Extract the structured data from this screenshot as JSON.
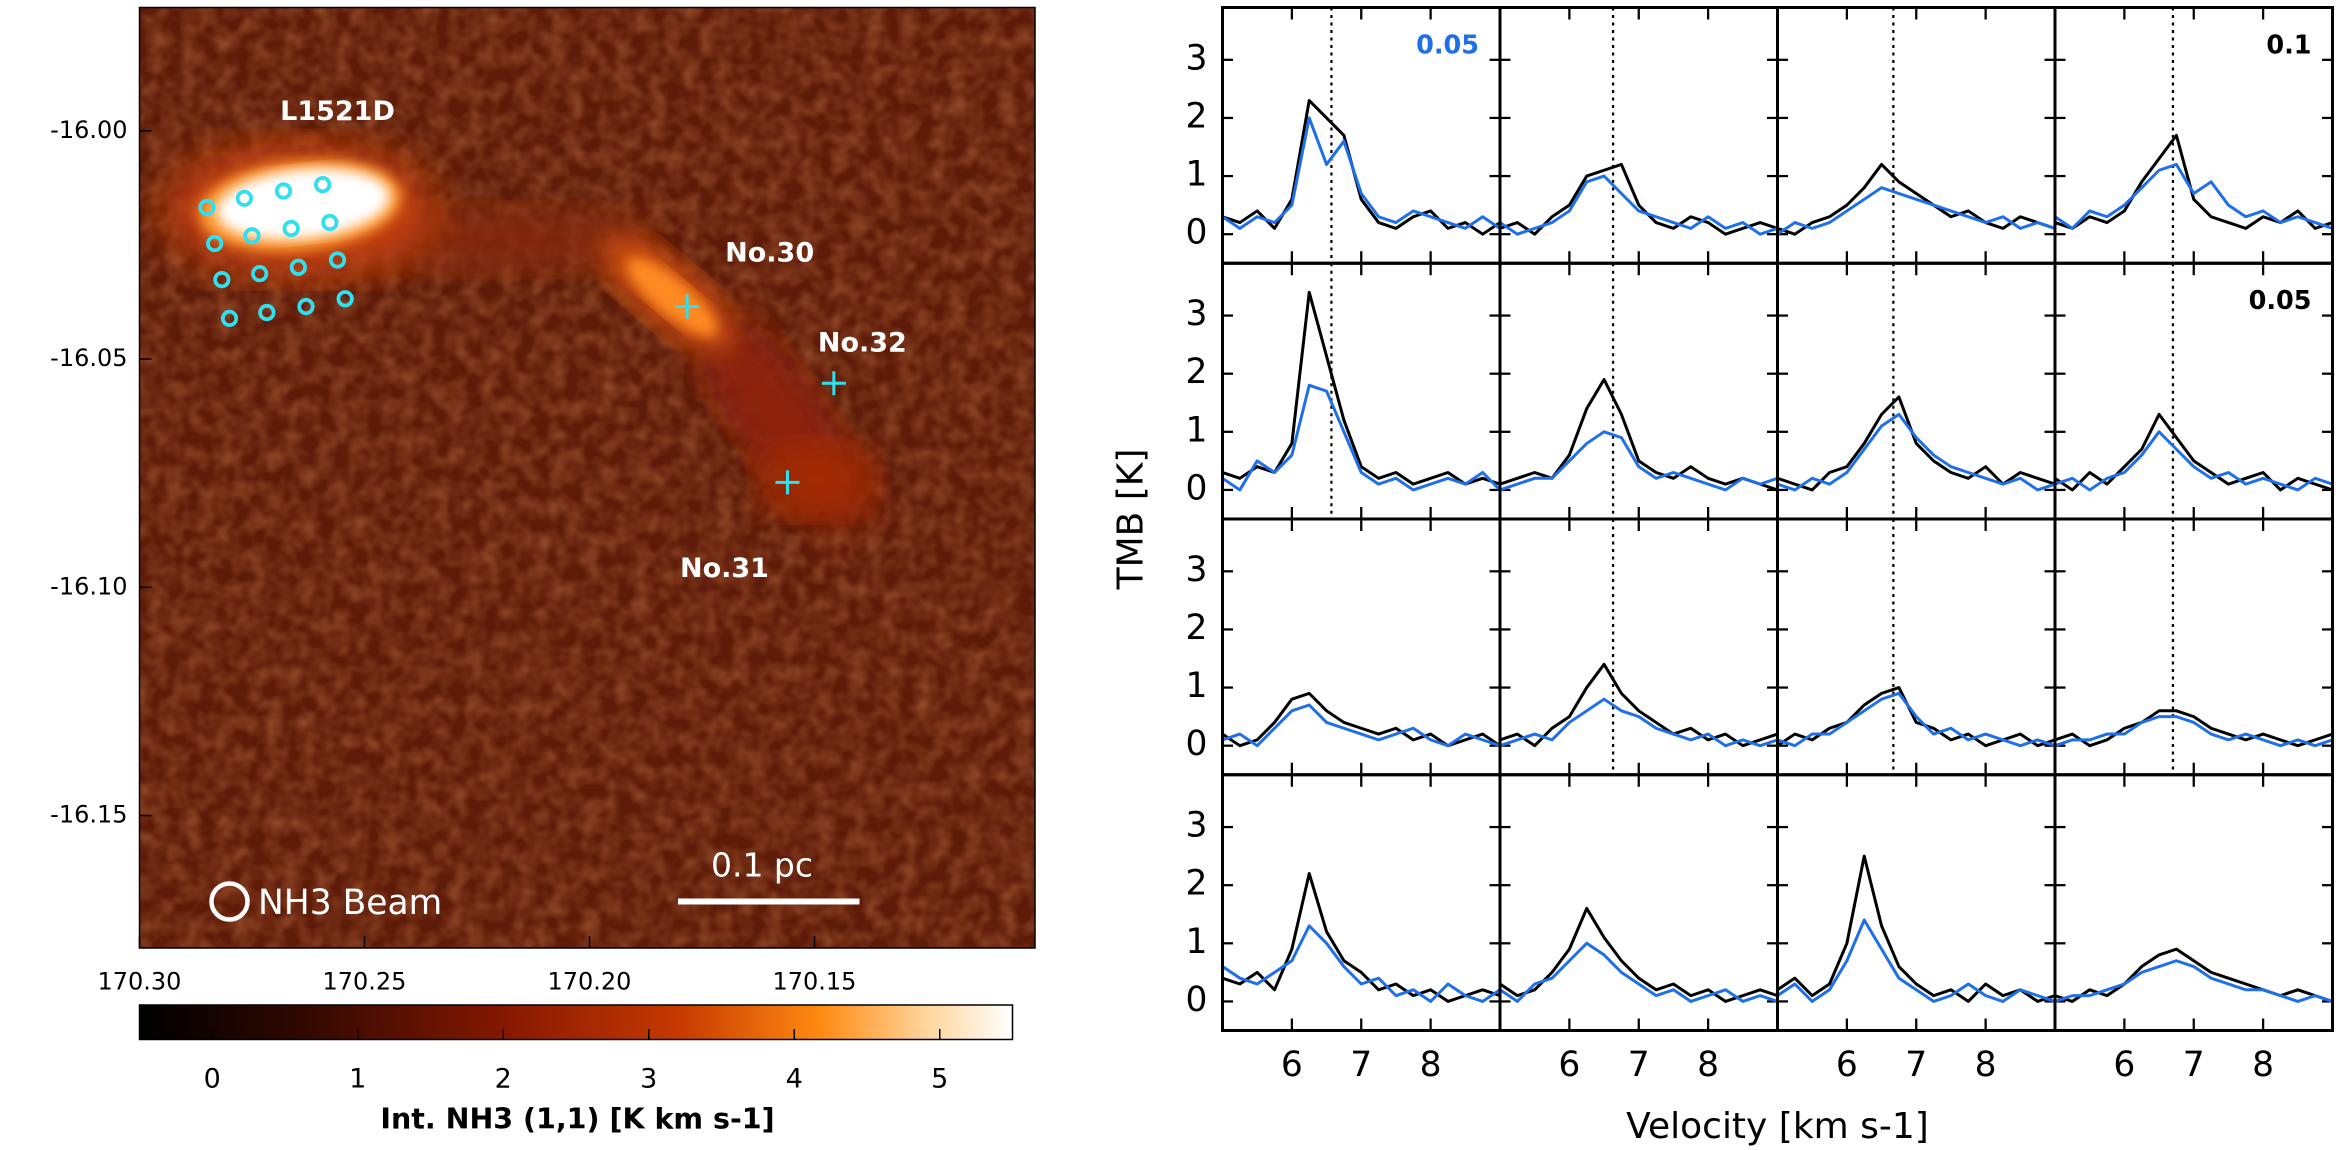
{
  "chart_data": [
    {
      "type": "image",
      "region_label": "L1521D",
      "xlim": [
        170.3,
        170.101
      ],
      "xticks": [
        {
          "value": 170.3,
          "label": "170.30"
        },
        {
          "value": 170.25,
          "label": "170.25"
        },
        {
          "value": 170.2,
          "label": "170.20"
        },
        {
          "value": 170.15,
          "label": "170.15"
        }
      ],
      "ylim": [
        -16.179,
        -15.973
      ],
      "yticks": [
        {
          "value": -16.0,
          "label": "-16.00"
        },
        {
          "value": -16.05,
          "label": "-16.05"
        },
        {
          "value": -16.1,
          "label": "-16.10"
        },
        {
          "value": -16.15,
          "label": "-16.15"
        }
      ],
      "sources": [
        {
          "name": "No.30",
          "x": 170.1783,
          "y": -16.0385
        },
        {
          "name": "No.32",
          "x": 170.1457,
          "y": -16.0553
        },
        {
          "name": "No.31",
          "x": 170.156,
          "y": -16.077
        }
      ],
      "positions": [
        {
          "x": 170.285,
          "y": -16.0168
        },
        {
          "x": 170.2767,
          "y": -16.0148
        },
        {
          "x": 170.268,
          "y": -16.0132
        },
        {
          "x": 170.2593,
          "y": -16.0118
        },
        {
          "x": 170.2833,
          "y": -16.0247
        },
        {
          "x": 170.275,
          "y": -16.023
        },
        {
          "x": 170.2663,
          "y": -16.0214
        },
        {
          "x": 170.2577,
          "y": -16.0201
        },
        {
          "x": 170.2817,
          "y": -16.0326
        },
        {
          "x": 170.2733,
          "y": -16.0313
        },
        {
          "x": 170.2647,
          "y": -16.0299
        },
        {
          "x": 170.256,
          "y": -16.0283
        },
        {
          "x": 170.28,
          "y": -16.0411
        },
        {
          "x": 170.2717,
          "y": -16.0398
        },
        {
          "x": 170.263,
          "y": -16.0385
        },
        {
          "x": 170.2543,
          "y": -16.0368
        }
      ],
      "marker_color": "#2fe0f0",
      "beam_label": "NH3 Beam",
      "scalebar_label": "0.1 pc",
      "colorbar": {
        "label": "Int. NH3 (1,1) [K km s-1]",
        "lim": [
          -0.5,
          5.5
        ],
        "ticks": [
          0,
          1,
          2,
          3,
          4,
          5
        ]
      }
    },
    {
      "type": "line",
      "xlabel": "Velocity [km s-1]",
      "ylabel": "TMB [K]",
      "xlim": [
        5.0,
        9.0
      ],
      "xticks": [
        6,
        7,
        8
      ],
      "ylim": [
        -0.5,
        3.9
      ],
      "yticks": [
        0,
        1,
        2,
        3
      ],
      "colors": [
        "#000000",
        "#1f6fe8"
      ],
      "x": [
        5.0,
        5.25,
        5.5,
        5.75,
        6.0,
        6.25,
        6.5,
        6.75,
        7.0,
        7.25,
        7.5,
        7.75,
        8.0,
        8.25,
        8.5,
        8.75,
        9.0
      ],
      "panels": [
        {
          "vline": 6.57,
          "note": "0.05",
          "note_color": "#1f6fe8",
          "series": [
            [
              0.3,
              0.2,
              0.4,
              0.1,
              0.6,
              2.3,
              2.0,
              1.7,
              0.6,
              0.2,
              0.1,
              0.3,
              0.4,
              0.1,
              0.2,
              0.0,
              0.2
            ],
            [
              0.3,
              0.1,
              0.3,
              0.2,
              0.5,
              2.0,
              1.2,
              1.6,
              0.7,
              0.3,
              0.2,
              0.4,
              0.3,
              0.2,
              0.1,
              0.3,
              0.1
            ]
          ]
        },
        {
          "vline": 6.63,
          "series": [
            [
              0.1,
              0.2,
              0.0,
              0.3,
              0.5,
              1.0,
              1.1,
              1.2,
              0.5,
              0.2,
              0.1,
              0.3,
              0.2,
              0.0,
              0.1,
              0.2,
              0.1
            ],
            [
              0.2,
              0.0,
              0.1,
              0.2,
              0.4,
              0.9,
              1.0,
              0.7,
              0.4,
              0.3,
              0.2,
              0.1,
              0.3,
              0.1,
              0.2,
              0.0,
              0.1
            ]
          ]
        },
        {
          "vline": 6.67,
          "series": [
            [
              0.1,
              0.0,
              0.2,
              0.3,
              0.5,
              0.8,
              1.2,
              0.9,
              0.7,
              0.5,
              0.3,
              0.4,
              0.2,
              0.1,
              0.3,
              0.2,
              0.1
            ],
            [
              0.0,
              0.2,
              0.1,
              0.2,
              0.4,
              0.6,
              0.8,
              0.7,
              0.6,
              0.5,
              0.4,
              0.3,
              0.2,
              0.3,
              0.1,
              0.2,
              0.1
            ]
          ]
        },
        {
          "vline": 6.7,
          "note": "0.1",
          "note_color": "#000000",
          "series": [
            [
              0.2,
              0.1,
              0.3,
              0.2,
              0.4,
              0.9,
              1.3,
              1.7,
              0.6,
              0.3,
              0.2,
              0.1,
              0.3,
              0.2,
              0.4,
              0.1,
              0.2
            ],
            [
              0.3,
              0.1,
              0.4,
              0.3,
              0.5,
              0.8,
              1.1,
              1.2,
              0.7,
              0.9,
              0.5,
              0.3,
              0.4,
              0.2,
              0.3,
              0.2,
              0.1
            ]
          ]
        },
        {
          "vline": 6.57,
          "series": [
            [
              0.3,
              0.2,
              0.4,
              0.3,
              0.8,
              3.4,
              2.3,
              1.2,
              0.4,
              0.2,
              0.3,
              0.1,
              0.2,
              0.3,
              0.1,
              0.2,
              0.1
            ],
            [
              0.2,
              0.0,
              0.5,
              0.3,
              0.6,
              1.8,
              1.7,
              1.0,
              0.3,
              0.1,
              0.2,
              0.0,
              0.1,
              0.2,
              0.1,
              0.3,
              0.0
            ]
          ]
        },
        {
          "vline": 6.63,
          "series": [
            [
              0.1,
              0.2,
              0.3,
              0.2,
              0.6,
              1.4,
              1.9,
              1.3,
              0.5,
              0.3,
              0.2,
              0.4,
              0.2,
              0.1,
              0.2,
              0.1,
              0.0
            ],
            [
              0.0,
              0.1,
              0.2,
              0.2,
              0.5,
              0.8,
              1.0,
              0.9,
              0.4,
              0.2,
              0.3,
              0.2,
              0.1,
              0.0,
              0.2,
              0.1,
              0.2
            ]
          ]
        },
        {
          "vline": 6.67,
          "series": [
            [
              0.2,
              0.1,
              0.0,
              0.3,
              0.4,
              0.8,
              1.3,
              1.6,
              0.8,
              0.5,
              0.3,
              0.2,
              0.4,
              0.1,
              0.3,
              0.2,
              0.1
            ],
            [
              0.1,
              0.0,
              0.2,
              0.1,
              0.3,
              0.7,
              1.1,
              1.3,
              0.9,
              0.6,
              0.4,
              0.3,
              0.2,
              0.1,
              0.2,
              0.0,
              0.1
            ]
          ]
        },
        {
          "vline": 6.7,
          "note": "0.05",
          "note_color": "#000000",
          "series": [
            [
              0.2,
              0.0,
              0.3,
              0.1,
              0.4,
              0.7,
              1.3,
              0.9,
              0.5,
              0.3,
              0.1,
              0.2,
              0.3,
              0.0,
              0.2,
              0.1,
              0.0
            ],
            [
              0.1,
              0.2,
              0.0,
              0.2,
              0.3,
              0.6,
              1.0,
              0.7,
              0.4,
              0.2,
              0.3,
              0.1,
              0.2,
              0.1,
              0.0,
              0.2,
              0.1
            ]
          ]
        },
        {
          "series": [
            [
              0.2,
              0.0,
              0.1,
              0.4,
              0.8,
              0.9,
              0.6,
              0.4,
              0.3,
              0.2,
              0.3,
              0.1,
              0.2,
              0.0,
              0.1,
              0.2,
              0.0
            ],
            [
              0.1,
              0.2,
              0.0,
              0.3,
              0.6,
              0.7,
              0.4,
              0.3,
              0.2,
              0.1,
              0.2,
              0.3,
              0.1,
              0.0,
              0.2,
              0.1,
              0.0
            ]
          ]
        },
        {
          "vline": 6.63,
          "series": [
            [
              0.1,
              0.2,
              0.0,
              0.3,
              0.5,
              1.0,
              1.4,
              0.9,
              0.6,
              0.4,
              0.2,
              0.3,
              0.1,
              0.2,
              0.0,
              0.1,
              0.2
            ],
            [
              0.0,
              0.1,
              0.2,
              0.1,
              0.4,
              0.6,
              0.8,
              0.6,
              0.5,
              0.3,
              0.2,
              0.1,
              0.2,
              0.0,
              0.1,
              0.0,
              0.1
            ]
          ]
        },
        {
          "vline": 6.67,
          "series": [
            [
              0.0,
              0.2,
              0.1,
              0.3,
              0.4,
              0.7,
              0.9,
              1.0,
              0.4,
              0.3,
              0.1,
              0.2,
              0.0,
              0.1,
              0.2,
              0.0,
              0.1
            ],
            [
              0.1,
              0.0,
              0.2,
              0.2,
              0.4,
              0.6,
              0.8,
              0.9,
              0.5,
              0.2,
              0.3,
              0.1,
              0.2,
              0.1,
              0.0,
              0.1,
              0.0
            ]
          ]
        },
        {
          "vline": 6.7,
          "series": [
            [
              0.1,
              0.2,
              0.0,
              0.1,
              0.3,
              0.4,
              0.6,
              0.6,
              0.5,
              0.3,
              0.2,
              0.1,
              0.2,
              0.1,
              0.0,
              0.1,
              0.2
            ],
            [
              0.0,
              0.1,
              0.1,
              0.2,
              0.2,
              0.4,
              0.5,
              0.5,
              0.4,
              0.2,
              0.1,
              0.2,
              0.1,
              0.0,
              0.1,
              0.0,
              0.1
            ]
          ]
        },
        {
          "series": [
            [
              0.4,
              0.3,
              0.5,
              0.2,
              0.9,
              2.2,
              1.2,
              0.7,
              0.5,
              0.2,
              0.3,
              0.1,
              0.2,
              0.0,
              0.1,
              0.2,
              0.1
            ],
            [
              0.6,
              0.4,
              0.3,
              0.5,
              0.7,
              1.3,
              1.0,
              0.6,
              0.3,
              0.4,
              0.1,
              0.2,
              0.0,
              0.3,
              0.1,
              0.0,
              0.2
            ]
          ]
        },
        {
          "series": [
            [
              0.3,
              0.1,
              0.2,
              0.5,
              0.9,
              1.6,
              1.1,
              0.7,
              0.4,
              0.2,
              0.3,
              0.1,
              0.2,
              0.0,
              0.1,
              0.2,
              0.1
            ],
            [
              0.2,
              0.0,
              0.3,
              0.4,
              0.7,
              1.0,
              0.8,
              0.5,
              0.3,
              0.1,
              0.2,
              0.0,
              0.1,
              0.2,
              0.0,
              0.1,
              0.0
            ]
          ]
        },
        {
          "series": [
            [
              0.2,
              0.4,
              0.1,
              0.3,
              1.0,
              2.5,
              1.3,
              0.6,
              0.3,
              0.1,
              0.2,
              0.0,
              0.3,
              0.1,
              0.2,
              0.0,
              0.1
            ],
            [
              0.1,
              0.3,
              0.0,
              0.2,
              0.7,
              1.4,
              0.9,
              0.4,
              0.2,
              0.0,
              0.1,
              0.3,
              0.1,
              0.0,
              0.2,
              0.1,
              0.0
            ]
          ]
        },
        {
          "series": [
            [
              0.1,
              0.0,
              0.2,
              0.1,
              0.3,
              0.6,
              0.8,
              0.9,
              0.7,
              0.5,
              0.4,
              0.3,
              0.2,
              0.1,
              0.2,
              0.1,
              0.0
            ],
            [
              0.0,
              0.1,
              0.1,
              0.2,
              0.3,
              0.5,
              0.6,
              0.7,
              0.6,
              0.4,
              0.3,
              0.2,
              0.2,
              0.1,
              0.0,
              0.1,
              0.0
            ]
          ]
        }
      ]
    }
  ]
}
